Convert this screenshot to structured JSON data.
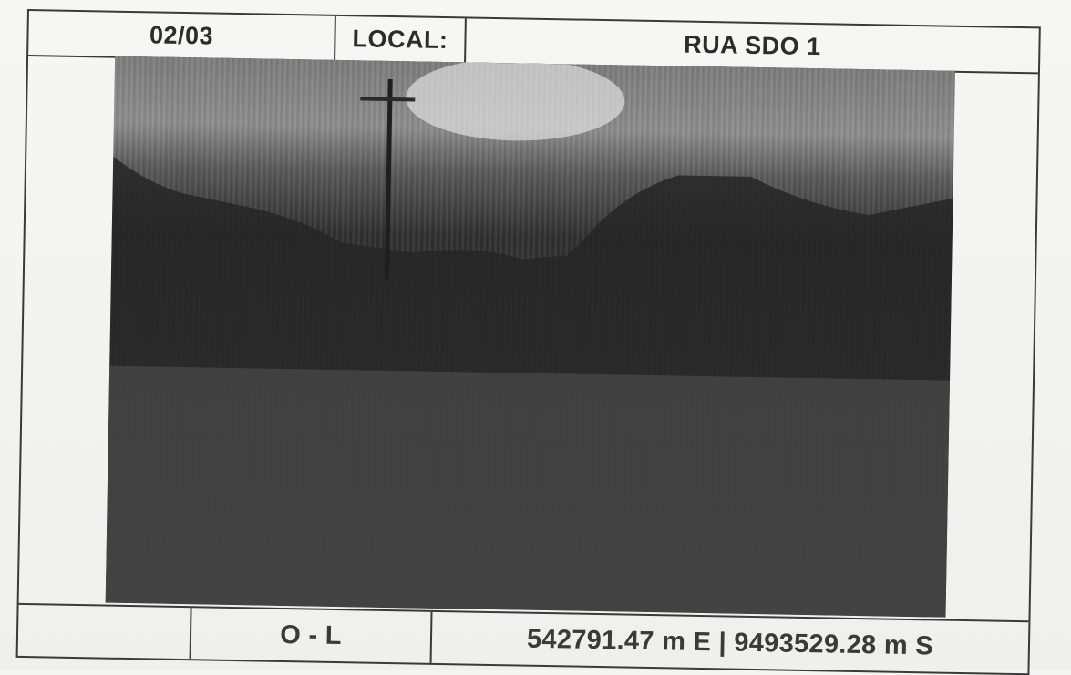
{
  "header": {
    "number": "02/03",
    "local_label": "LOCAL:",
    "location": "RUA SDO 1"
  },
  "footer": {
    "direction": "O - L",
    "coordinates": "542791.47 m E | 9493529.28 m S"
  },
  "colors": {
    "ink": "#3a3a3a",
    "paper": "#f4f4f2"
  }
}
